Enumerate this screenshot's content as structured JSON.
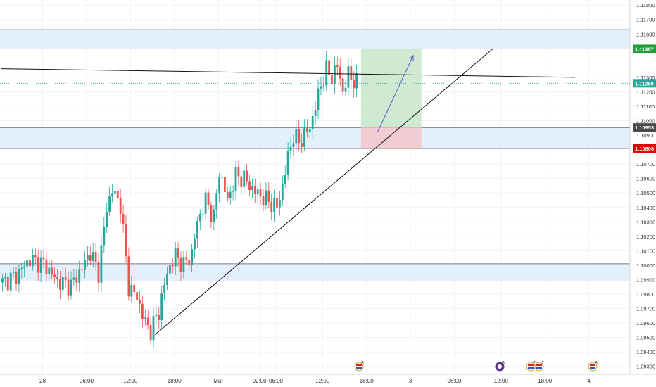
{
  "colors": {
    "up": "#26a69a",
    "down": "#ef5350",
    "zone_fill": "#e3effb",
    "zone_border": "#555555",
    "target_fill": "#c8e6c9",
    "stop_fill": "#f4c7ce",
    "target_tag": "#1e9e3a",
    "entry_tag": "#4a4a4a",
    "stop_tag": "#e00000",
    "last_tag": "#26a69a",
    "arrow": "#6a5acd",
    "trendline": "#111111"
  },
  "price_axis": {
    "ticks": [
      "1.11800",
      "1.11700",
      "1.11600",
      "1.11500",
      "1.11300",
      "1.11200",
      "1.11100",
      "1.11000",
      "1.10900",
      "1.10700",
      "1.10600",
      "1.10500",
      "1.10400",
      "1.10300",
      "1.10200",
      "1.10100",
      "1.10000",
      "1.09900",
      "1.09800",
      "1.09700",
      "1.09600",
      "1.09500",
      "1.09400",
      "1.09300"
    ]
  },
  "time_axis": {
    "ticks": [
      "28",
      "06:00",
      "12:00",
      "18:00",
      "Mar",
      "02:00",
      "06:00",
      "12:00",
      "18:00",
      "3",
      "06:00",
      "12:00",
      "18:00",
      "4"
    ]
  },
  "price_tags": {
    "target": "1.11497",
    "last": "1.11259",
    "entry": "1.10953",
    "stop": "1.10808"
  },
  "events": [
    {
      "icon": "us-flag-icon",
      "count": "3"
    },
    {
      "icon": "earnings-icon",
      "count": "8"
    },
    {
      "icon": "us-flag-icon",
      "count": "2"
    },
    {
      "icon": "us-flag-icon",
      "count": "2"
    },
    {
      "icon": "us-flag-icon",
      "count": "8"
    }
  ],
  "chart_data": {
    "type": "candlestick",
    "title": "",
    "xlabel": "",
    "ylabel": "",
    "ylim": [
      1.09245,
      1.11835
    ],
    "candle_count": 130,
    "key_closes": [
      [
        0,
        1.0988
      ],
      [
        5,
        1.0993
      ],
      [
        10,
        1.1004
      ],
      [
        15,
        1.1001
      ],
      [
        20,
        1.0989
      ],
      [
        25,
        1.0986
      ],
      [
        29,
        1.0998
      ],
      [
        32,
        1.1009
      ],
      [
        35,
        1.0995
      ],
      [
        38,
        1.104
      ],
      [
        40,
        1.1052
      ],
      [
        43,
        1.1042
      ],
      [
        46,
        1.0985
      ],
      [
        49,
        1.0978
      ],
      [
        52,
        1.096
      ],
      [
        54,
        1.0955
      ],
      [
        57,
        1.0968
      ],
      [
        60,
        1.0995
      ],
      [
        63,
        1.1007
      ],
      [
        66,
        1.1
      ],
      [
        69,
        1.1008
      ],
      [
        71,
        1.103
      ],
      [
        74,
        1.1045
      ],
      [
        77,
        1.1033
      ],
      [
        79,
        1.1065
      ],
      [
        82,
        1.1045
      ],
      [
        85,
        1.1062
      ],
      [
        88,
        1.106
      ],
      [
        91,
        1.1053
      ],
      [
        94,
        1.1048
      ],
      [
        97,
        1.1044
      ],
      [
        100,
        1.104
      ],
      [
        102,
        1.1055
      ],
      [
        104,
        1.1075
      ],
      [
        106,
        1.109
      ],
      [
        108,
        1.1085
      ],
      [
        110,
        1.109
      ],
      [
        112,
        1.1095
      ],
      [
        114,
        1.111
      ],
      [
        116,
        1.1125
      ],
      [
        118,
        1.1135
      ],
      [
        120,
        1.113
      ],
      [
        122,
        1.1138
      ],
      [
        124,
        1.112
      ],
      [
        126,
        1.1132
      ],
      [
        128,
        1.1128
      ],
      [
        129,
        1.1126
      ]
    ],
    "spike_high": {
      "index": 120,
      "value": 1.1167
    },
    "support_resistance_zones": [
      {
        "name": "upper zone",
        "top": 1.1163,
        "bottom": 1.11497
      },
      {
        "name": "middle zone",
        "top": 1.10953,
        "bottom": 1.10808
      },
      {
        "name": "lower zone",
        "top": 1.1001,
        "bottom": 1.0989
      }
    ],
    "long_position": {
      "entry": 1.10953,
      "target": 1.11497,
      "stop": 1.10808,
      "start_index": 131,
      "end_index": 153
    },
    "trendlines": [
      {
        "kind": "ascending",
        "from": [
          56,
          1.0952
        ],
        "to": [
          179,
          1.11497
        ]
      },
      {
        "kind": "horizontal",
        "from": [
          0,
          1.1136
        ],
        "to": [
          209,
          1.113
        ]
      }
    ],
    "forecast_arrow": {
      "from": [
        137,
        1.1092
      ],
      "to": [
        150,
        1.1145
      ]
    },
    "last_price": 1.11259,
    "legend": "none",
    "grid": true
  }
}
